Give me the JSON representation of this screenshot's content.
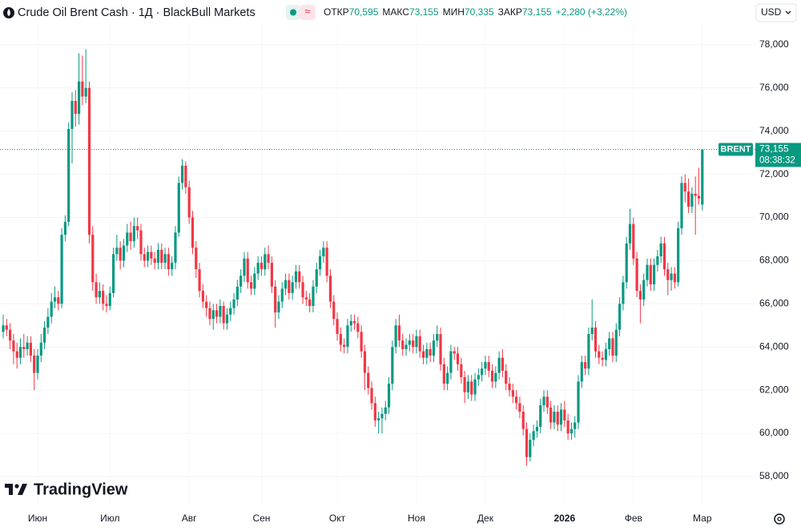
{
  "header": {
    "title": "Crude Oil Brent Cash · 1Д · BlackBull Markets",
    "ohlc": [
      {
        "label": "ОТКР",
        "value": "70,595"
      },
      {
        "label": "МАКС",
        "value": "73,155"
      },
      {
        "label": "МИН",
        "value": "70,335"
      },
      {
        "label": "ЗАКР",
        "value": "73,155"
      }
    ],
    "change": "+2,280 (+3,22%)",
    "currency": "USD"
  },
  "logo": "TradingView",
  "chart_data": {
    "type": "candlestick",
    "up_color": "#089981",
    "down_color": "#f23645",
    "grid": true,
    "ylim": [
      56.7,
      78.96
    ],
    "yticks": [
      {
        "value": 58,
        "label": "58,000"
      },
      {
        "value": 60,
        "label": "60,000"
      },
      {
        "value": 62,
        "label": "62,000"
      },
      {
        "value": 64,
        "label": "64,000"
      },
      {
        "value": 66,
        "label": "66,000"
      },
      {
        "value": 68,
        "label": "68,000"
      },
      {
        "value": 70,
        "label": "70,000"
      },
      {
        "value": 72,
        "label": "72,000"
      },
      {
        "value": 74,
        "label": "74,000"
      },
      {
        "value": 76,
        "label": "76,000"
      },
      {
        "value": 78,
        "label": "78,000"
      }
    ],
    "xlim": [
      -0.93,
      218.4
    ],
    "xticks": [
      {
        "value": 10,
        "label": "Июн"
      },
      {
        "value": 31,
        "label": "Июл"
      },
      {
        "value": 54,
        "label": "Авг"
      },
      {
        "value": 75,
        "label": "Сен"
      },
      {
        "value": 97,
        "label": "Окт"
      },
      {
        "value": 120,
        "label": "Ноя"
      },
      {
        "value": 140,
        "label": "Дек"
      },
      {
        "value": 163,
        "label": "2026"
      },
      {
        "value": 183,
        "label": "Фев"
      },
      {
        "value": 203,
        "label": "Мар"
      }
    ],
    "last_price": {
      "name": "BRENT",
      "value": 73.155,
      "label": "73,155",
      "timer": "08:38:32",
      "color": "#089981"
    },
    "open": [
      64.7,
      65.0,
      64.8,
      64.3,
      63.8,
      63.5,
      64.0,
      63.9,
      64.2,
      63.6,
      62.8,
      63.6,
      64.2,
      64.9,
      65.4,
      66.1,
      66.3,
      66.0,
      69.2,
      69.8,
      74.1,
      75.4,
      74.8,
      76.3,
      75.6,
      76.0,
      69.2,
      67.0,
      66.3,
      66.6,
      66.0,
      65.9,
      66.5,
      68.3,
      68.6,
      68.0,
      68.7,
      69.3,
      68.9,
      69.6,
      69.4,
      68.3,
      68.0,
      68.4,
      68.1,
      67.9,
      68.5,
      67.9,
      68.3,
      67.6,
      67.9,
      69.3,
      71.6,
      72.4,
      71.4,
      70.0,
      68.6,
      67.6,
      66.6,
      66.1,
      65.8,
      65.3,
      65.7,
      65.4,
      65.9,
      65.1,
      65.5,
      65.8,
      66.2,
      66.8,
      67.3,
      68.1,
      67.0,
      66.7,
      67.4,
      67.9,
      67.6,
      68.3,
      67.9,
      66.8,
      65.6,
      66.1,
      66.7,
      67.1,
      66.5,
      67.0,
      67.5,
      67.0,
      66.3,
      66.2,
      65.9,
      66.8,
      67.6,
      68.2,
      68.6,
      67.3,
      66.1,
      65.3,
      64.6,
      64.1,
      64.0,
      65.0,
      65.2,
      65.1,
      64.7,
      63.8,
      62.8,
      62.1,
      61.4,
      60.6,
      60.7,
      60.9,
      61.2,
      62.3,
      64.0,
      65.0,
      64.3,
      63.9,
      64.1,
      64.3,
      64.0,
      64.5,
      63.8,
      63.5,
      63.9,
      63.6,
      64.3,
      64.6,
      63.2,
      62.3,
      62.8,
      63.8,
      63.7,
      63.2,
      62.6,
      61.9,
      62.4,
      61.8,
      62.5,
      62.7,
      63.0,
      63.3,
      62.9,
      62.4,
      62.8,
      63.5,
      62.9,
      62.3,
      62.0,
      61.7,
      61.4,
      61.0,
      60.2,
      58.9,
      59.7,
      60.1,
      60.3,
      61.3,
      61.7,
      61.2,
      60.5,
      61.0,
      60.4,
      61.1,
      60.6,
      60.0,
      60.2,
      60.5,
      62.4,
      63.3,
      63.0,
      64.6,
      64.9,
      63.8,
      63.5,
      63.4,
      63.9,
      64.4,
      63.6,
      64.8,
      66.0,
      67.0,
      68.8,
      69.7,
      68.1,
      66.6,
      66.2,
      67.1,
      67.8,
      66.9,
      67.8,
      68.2,
      68.8,
      67.6,
      67.1,
      67.4,
      67.0,
      69.5,
      71.6,
      71.2,
      70.5,
      71.1,
      71.0,
      70.595
    ],
    "high": [
      65.5,
      65.3,
      65.1,
      64.6,
      64.2,
      64.4,
      64.6,
      64.5,
      64.5,
      63.9,
      63.9,
      64.6,
      65.2,
      65.8,
      66.5,
      66.8,
      66.6,
      69.5,
      70.1,
      74.4,
      75.8,
      75.9,
      77.6,
      77.5,
      77.8,
      76.3,
      69.6,
      67.4,
      67.0,
      66.9,
      66.4,
      66.8,
      68.6,
      69.2,
      68.9,
      69.0,
      69.7,
      69.8,
      70.0,
      70.0,
      69.7,
      68.6,
      68.7,
      68.7,
      68.4,
      68.8,
      68.8,
      68.6,
      68.6,
      68.2,
      69.6,
      71.9,
      72.7,
      72.6,
      71.7,
      70.3,
      68.9,
      67.9,
      66.9,
      66.4,
      66.1,
      66.0,
      66.0,
      66.2,
      66.1,
      65.8,
      66.1,
      66.5,
      67.1,
      67.6,
      68.4,
      68.4,
      67.3,
      67.7,
      68.2,
      68.2,
      68.6,
      68.7,
      68.2,
      67.1,
      66.4,
      67.0,
      67.4,
      67.4,
      67.3,
      67.8,
      67.8,
      67.3,
      66.6,
      66.5,
      67.1,
      67.9,
      68.5,
      68.9,
      68.9,
      67.6,
      66.4,
      65.6,
      64.9,
      64.4,
      65.3,
      65.5,
      65.5,
      65.4,
      65.0,
      64.1,
      63.1,
      62.4,
      61.7,
      61.0,
      61.2,
      61.5,
      62.6,
      64.3,
      65.3,
      65.5,
      64.6,
      64.4,
      64.6,
      64.6,
      64.8,
      64.8,
      64.1,
      64.2,
      64.2,
      64.6,
      65.0,
      64.9,
      63.5,
      63.1,
      64.1,
      64.0,
      64.0,
      63.5,
      62.9,
      62.7,
      62.7,
      62.8,
      63.0,
      63.3,
      63.6,
      63.6,
      63.2,
      63.1,
      63.8,
      63.9,
      63.2,
      62.6,
      62.3,
      62.0,
      61.7,
      61.3,
      60.5,
      60.0,
      60.4,
      60.6,
      61.6,
      62.0,
      62.0,
      61.5,
      61.3,
      61.3,
      61.4,
      61.5,
      60.9,
      60.5,
      60.8,
      62.7,
      63.6,
      63.6,
      64.9,
      66.2,
      65.2,
      64.1,
      63.8,
      64.2,
      64.7,
      64.7,
      65.1,
      66.3,
      67.3,
      69.1,
      70.4,
      70.0,
      68.4,
      66.9,
      67.4,
      68.1,
      68.1,
      68.1,
      68.5,
      69.1,
      69.1,
      67.9,
      67.7,
      67.7,
      69.8,
      71.9,
      72.0,
      71.8,
      71.4,
      71.9,
      72.3,
      73.155
    ],
    "low": [
      64.4,
      64.5,
      63.9,
      63.2,
      63.0,
      63.2,
      63.5,
      63.6,
      63.3,
      62.0,
      62.5,
      63.3,
      63.9,
      64.6,
      65.1,
      65.8,
      65.7,
      65.8,
      68.9,
      69.6,
      72.5,
      74.2,
      74.3,
      75.2,
      75.3,
      68.8,
      66.6,
      66.0,
      66.0,
      65.7,
      65.6,
      65.7,
      66.3,
      68.0,
      67.6,
      67.7,
      68.4,
      68.5,
      68.6,
      69.0,
      68.0,
      67.7,
      67.7,
      67.8,
      67.6,
      67.6,
      67.6,
      67.6,
      67.3,
      67.3,
      67.6,
      69.1,
      71.3,
      71.1,
      69.7,
      68.3,
      67.2,
      66.3,
      65.8,
      65.4,
      65.0,
      64.8,
      65.1,
      65.1,
      64.8,
      64.8,
      65.2,
      65.5,
      65.9,
      66.5,
      67.0,
      66.7,
      66.4,
      66.4,
      67.1,
      67.3,
      67.3,
      67.6,
      66.5,
      64.9,
      65.3,
      65.8,
      66.4,
      66.2,
      66.2,
      66.7,
      66.7,
      66.0,
      65.9,
      65.6,
      65.6,
      66.5,
      67.3,
      67.9,
      67.0,
      65.8,
      65.0,
      64.3,
      63.8,
      63.7,
      63.7,
      64.7,
      64.8,
      64.4,
      63.5,
      62.0,
      61.8,
      61.1,
      60.3,
      60.0,
      60.0,
      60.6,
      60.9,
      62.0,
      63.7,
      64.0,
      63.6,
      63.6,
      63.8,
      63.7,
      63.7,
      63.5,
      63.2,
      63.2,
      63.3,
      63.3,
      64.0,
      62.9,
      62.0,
      62.0,
      62.5,
      63.4,
      62.9,
      62.3,
      61.4,
      61.6,
      61.5,
      61.5,
      62.2,
      62.4,
      62.7,
      62.6,
      62.1,
      62.1,
      62.5,
      62.6,
      62.0,
      61.7,
      61.4,
      61.1,
      60.7,
      59.9,
      58.5,
      58.7,
      59.4,
      59.8,
      60.0,
      61.0,
      60.9,
      60.2,
      60.2,
      60.1,
      60.1,
      60.3,
      59.7,
      59.7,
      59.8,
      60.2,
      62.1,
      62.7,
      62.7,
      64.3,
      63.5,
      63.2,
      63.1,
      63.1,
      63.6,
      63.3,
      63.3,
      64.5,
      65.7,
      66.7,
      68.5,
      67.8,
      66.3,
      65.1,
      65.9,
      66.8,
      66.6,
      66.6,
      67.5,
      67.9,
      67.3,
      66.4,
      66.6,
      66.7,
      66.8,
      69.2,
      70.7,
      70.2,
      70.2,
      69.2,
      70.6,
      70.335
    ],
    "close": [
      65.0,
      64.8,
      64.3,
      63.8,
      63.5,
      64.0,
      63.9,
      64.2,
      63.6,
      62.8,
      63.6,
      64.2,
      64.9,
      65.4,
      66.1,
      66.3,
      66.0,
      69.2,
      69.8,
      74.1,
      75.4,
      74.8,
      76.3,
      75.6,
      76.0,
      69.2,
      67.0,
      66.3,
      66.6,
      66.0,
      65.9,
      66.5,
      68.3,
      68.6,
      68.0,
      68.7,
      69.3,
      68.9,
      69.6,
      69.4,
      68.3,
      68.0,
      68.4,
      68.1,
      67.9,
      68.5,
      67.9,
      68.3,
      67.6,
      67.9,
      69.3,
      71.6,
      72.4,
      71.4,
      70.0,
      68.6,
      67.6,
      66.6,
      66.1,
      65.8,
      65.3,
      65.7,
      65.4,
      65.9,
      65.1,
      65.5,
      65.8,
      66.2,
      66.8,
      67.3,
      68.1,
      67.0,
      66.7,
      67.4,
      67.9,
      67.6,
      68.3,
      67.9,
      66.8,
      65.6,
      66.1,
      66.7,
      67.1,
      66.5,
      67.0,
      67.5,
      67.0,
      66.3,
      66.2,
      65.9,
      66.8,
      67.6,
      68.2,
      68.6,
      67.3,
      66.1,
      65.3,
      64.6,
      64.1,
      64.0,
      65.0,
      65.2,
      65.1,
      64.7,
      63.8,
      62.8,
      62.1,
      61.4,
      60.6,
      60.7,
      60.9,
      61.2,
      62.3,
      64.0,
      65.0,
      64.3,
      63.9,
      64.1,
      64.3,
      64.0,
      64.5,
      63.8,
      63.5,
      63.9,
      63.6,
      64.3,
      64.6,
      63.2,
      62.3,
      62.8,
      63.8,
      63.7,
      63.2,
      62.6,
      61.9,
      62.4,
      61.8,
      62.5,
      62.7,
      63.0,
      63.3,
      62.9,
      62.4,
      62.8,
      63.5,
      62.9,
      62.3,
      62.0,
      61.7,
      61.4,
      61.0,
      60.2,
      58.9,
      59.7,
      60.1,
      60.3,
      61.3,
      61.7,
      61.2,
      60.5,
      61.0,
      60.4,
      61.1,
      60.6,
      60.0,
      60.2,
      60.5,
      62.4,
      63.3,
      63.0,
      64.6,
      64.9,
      63.8,
      63.5,
      63.4,
      63.9,
      64.4,
      63.6,
      64.8,
      66.0,
      67.0,
      68.8,
      69.7,
      68.1,
      66.6,
      66.2,
      67.1,
      67.8,
      66.9,
      67.8,
      68.2,
      68.8,
      67.6,
      67.1,
      67.4,
      67.0,
      69.5,
      71.6,
      71.2,
      70.5,
      71.1,
      71.0,
      70.875,
      73.155
    ]
  }
}
